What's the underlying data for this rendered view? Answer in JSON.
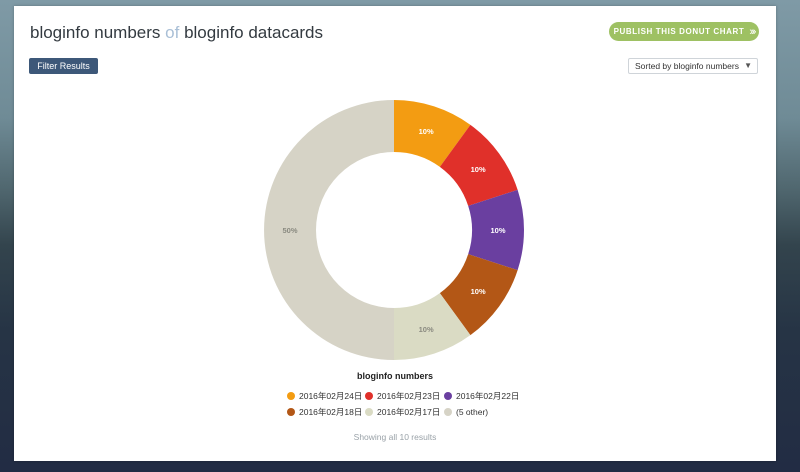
{
  "header": {
    "title_part1": "bloginfo numbers",
    "title_of": "of",
    "title_part2": "bloginfo datacards",
    "publish_label": "PUBLISH THIS DONUT CHART",
    "publish_icon": "double-chevron-right-icon"
  },
  "toolbar": {
    "filter_label": "Filter Results",
    "sort_label": "Sorted by bloginfo numbers"
  },
  "status": "Showing all 10 results",
  "chart_data": {
    "type": "pie",
    "donut": true,
    "title": "bloginfo numbers",
    "legend_placement": "bottom",
    "slices": [
      {
        "label": "2016年02月24日",
        "value": 10,
        "display": "10%",
        "color": "#f39c12"
      },
      {
        "label": "2016年02月23日",
        "value": 10,
        "display": "10%",
        "color": "#e0302a"
      },
      {
        "label": "2016年02月22日",
        "value": 10,
        "display": "10%",
        "color": "#6a3fa0"
      },
      {
        "label": "2016年02月18日",
        "value": 10,
        "display": "10%",
        "color": "#b35716"
      },
      {
        "label": "2016年02月17日",
        "value": 10,
        "display": "10%",
        "color": "#dadbc4"
      },
      {
        "label": "(5 other)",
        "value": 50,
        "display": "50%",
        "color": "#d6d3c6"
      }
    ]
  }
}
